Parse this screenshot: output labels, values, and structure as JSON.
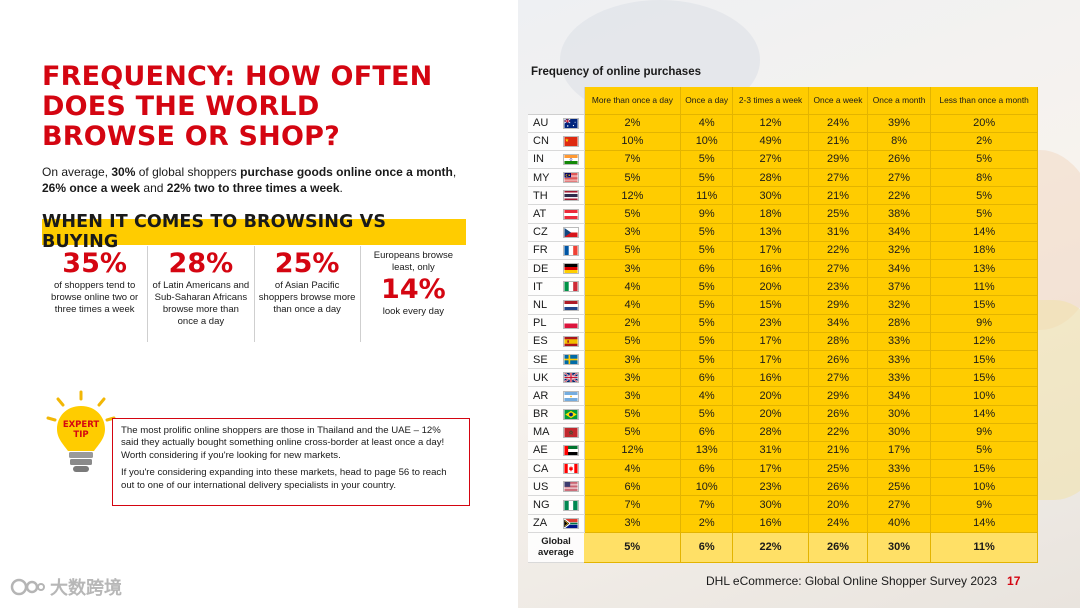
{
  "title": "FREQUENCY: HOW OFTEN DOES THE WORLD BROWSE OR SHOP?",
  "intro": {
    "p1": "On average, ",
    "b1": "30%",
    "p2": " of global shoppers ",
    "b2": "purchase goods online once a month",
    "p3": ", ",
    "b3": "26% once a week",
    "p4": " and ",
    "b4": "22% two to three times a week",
    "p5": "."
  },
  "browsing": {
    "banner": "WHEN IT COMES TO BROWSING VS BUYING",
    "stats": [
      {
        "pre": "",
        "pct": "35%",
        "text": "of shoppers tend to browse online two or three times a week"
      },
      {
        "pre": "",
        "pct": "28%",
        "text": "of Latin Americans and Sub-Saharan Africans browse more than once a day"
      },
      {
        "pre": "",
        "pct": "25%",
        "text": "of Asian Pacific shoppers browse more than once a day"
      },
      {
        "pre": "Europeans browse least, only",
        "pct": "14%",
        "text": "look every day"
      }
    ]
  },
  "expert_tip": {
    "icon_label_1": "EXPERT",
    "icon_label_2": "TIP",
    "p1": "The most prolific online shoppers are those in Thailand and the UAE – 12% said they actually bought something online cross-border at least once a day! Worth considering if you're looking for new markets.",
    "p2": "If you're considering expanding into these markets, head to page 56 to reach out to one of our international delivery specialists in your country."
  },
  "table": {
    "title": "Frequency of online purchases",
    "columns": [
      "More than once a day",
      "Once a day",
      "2-3 times a week",
      "Once a week",
      "Once a month",
      "Less than once a month"
    ],
    "rows": [
      {
        "code": "AU",
        "flag": "au",
        "values": [
          "2%",
          "4%",
          "12%",
          "24%",
          "39%",
          "20%"
        ]
      },
      {
        "code": "CN",
        "flag": "cn",
        "values": [
          "10%",
          "10%",
          "49%",
          "21%",
          "8%",
          "2%"
        ]
      },
      {
        "code": "IN",
        "flag": "in",
        "values": [
          "7%",
          "5%",
          "27%",
          "29%",
          "26%",
          "5%"
        ]
      },
      {
        "code": "MY",
        "flag": "my",
        "values": [
          "5%",
          "5%",
          "28%",
          "27%",
          "27%",
          "8%"
        ]
      },
      {
        "code": "TH",
        "flag": "th",
        "values": [
          "12%",
          "11%",
          "30%",
          "21%",
          "22%",
          "5%"
        ]
      },
      {
        "code": "AT",
        "flag": "at",
        "values": [
          "5%",
          "9%",
          "18%",
          "25%",
          "38%",
          "5%"
        ]
      },
      {
        "code": "CZ",
        "flag": "cz",
        "values": [
          "3%",
          "5%",
          "13%",
          "31%",
          "34%",
          "14%"
        ]
      },
      {
        "code": "FR",
        "flag": "fr",
        "values": [
          "5%",
          "5%",
          "17%",
          "22%",
          "32%",
          "18%"
        ]
      },
      {
        "code": "DE",
        "flag": "de",
        "values": [
          "3%",
          "6%",
          "16%",
          "27%",
          "34%",
          "13%"
        ]
      },
      {
        "code": "IT",
        "flag": "it",
        "values": [
          "4%",
          "5%",
          "20%",
          "23%",
          "37%",
          "11%"
        ]
      },
      {
        "code": "NL",
        "flag": "nl",
        "values": [
          "4%",
          "5%",
          "15%",
          "29%",
          "32%",
          "15%"
        ]
      },
      {
        "code": "PL",
        "flag": "pl",
        "values": [
          "2%",
          "5%",
          "23%",
          "34%",
          "28%",
          "9%"
        ]
      },
      {
        "code": "ES",
        "flag": "es",
        "values": [
          "5%",
          "5%",
          "17%",
          "28%",
          "33%",
          "12%"
        ]
      },
      {
        "code": "SE",
        "flag": "se",
        "values": [
          "3%",
          "5%",
          "17%",
          "26%",
          "33%",
          "15%"
        ]
      },
      {
        "code": "UK",
        "flag": "uk",
        "values": [
          "3%",
          "6%",
          "16%",
          "27%",
          "33%",
          "15%"
        ]
      },
      {
        "code": "AR",
        "flag": "ar",
        "values": [
          "3%",
          "4%",
          "20%",
          "29%",
          "34%",
          "10%"
        ]
      },
      {
        "code": "BR",
        "flag": "br",
        "values": [
          "5%",
          "5%",
          "20%",
          "26%",
          "30%",
          "14%"
        ]
      },
      {
        "code": "MA",
        "flag": "ma",
        "values": [
          "5%",
          "6%",
          "28%",
          "22%",
          "30%",
          "9%"
        ]
      },
      {
        "code": "AE",
        "flag": "ae",
        "values": [
          "12%",
          "13%",
          "31%",
          "21%",
          "17%",
          "5%"
        ]
      },
      {
        "code": "CA",
        "flag": "ca",
        "values": [
          "4%",
          "6%",
          "17%",
          "25%",
          "33%",
          "15%"
        ]
      },
      {
        "code": "US",
        "flag": "us",
        "values": [
          "6%",
          "10%",
          "23%",
          "26%",
          "25%",
          "10%"
        ]
      },
      {
        "code": "NG",
        "flag": "ng",
        "values": [
          "7%",
          "7%",
          "30%",
          "20%",
          "27%",
          "9%"
        ]
      },
      {
        "code": "ZA",
        "flag": "za",
        "values": [
          "3%",
          "2%",
          "16%",
          "24%",
          "40%",
          "14%"
        ]
      }
    ],
    "average": {
      "label": "Global average",
      "values": [
        "5%",
        "6%",
        "22%",
        "26%",
        "30%",
        "11%"
      ]
    }
  },
  "footer": {
    "text": "DHL eCommerce: Global Online Shopper Survey 2023",
    "page": "17"
  },
  "watermark": {
    "text": "大数跨境"
  },
  "colors": {
    "dhl_red": "#d40511",
    "dhl_yellow": "#ffcc00"
  }
}
